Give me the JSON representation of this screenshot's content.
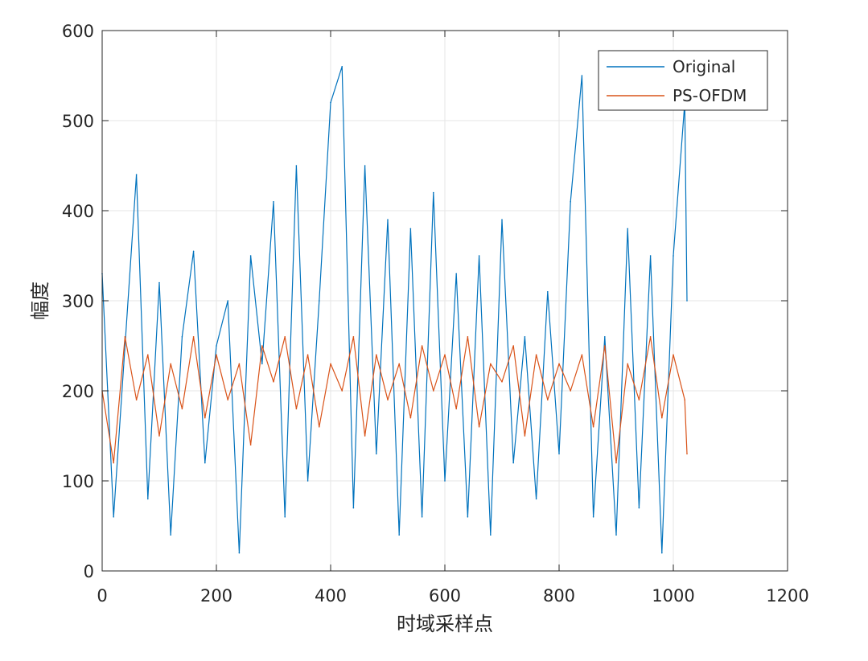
{
  "figure": {
    "background": "#ffffff"
  },
  "chart_data": {
    "type": "line",
    "title": "",
    "xlabel": "时域采样点",
    "ylabel": "幅度",
    "xlim": [
      0,
      1200
    ],
    "ylim": [
      0,
      600
    ],
    "xticks": [
      0,
      200,
      400,
      600,
      800,
      1000,
      1200
    ],
    "yticks": [
      0,
      100,
      200,
      300,
      400,
      500,
      600
    ],
    "xtick_labels": [
      "0",
      "200",
      "400",
      "600",
      "800",
      "1000",
      "1200"
    ],
    "ytick_labels": [
      "0",
      "100",
      "200",
      "300",
      "400",
      "500",
      "600"
    ],
    "grid": true,
    "legend_position": "top-right",
    "x": [
      0,
      20,
      40,
      60,
      80,
      100,
      120,
      140,
      160,
      180,
      200,
      220,
      240,
      260,
      280,
      300,
      320,
      340,
      360,
      380,
      400,
      420,
      440,
      460,
      480,
      500,
      520,
      540,
      560,
      580,
      600,
      620,
      640,
      660,
      680,
      700,
      720,
      740,
      760,
      780,
      800,
      820,
      840,
      860,
      880,
      900,
      920,
      940,
      960,
      980,
      1000,
      1020,
      1024
    ],
    "series": [
      {
        "name": "Original",
        "color": "#0072BD",
        "values": [
          330,
          60,
          250,
          440,
          80,
          320,
          40,
          260,
          355,
          120,
          250,
          300,
          20,
          350,
          230,
          410,
          60,
          450,
          100,
          300,
          520,
          560,
          70,
          450,
          130,
          390,
          40,
          380,
          60,
          420,
          100,
          330,
          60,
          350,
          40,
          390,
          120,
          260,
          80,
          310,
          130,
          410,
          550,
          60,
          260,
          40,
          380,
          70,
          350,
          20,
          350,
          520,
          300
        ]
      },
      {
        "name": "PS-OFDM",
        "color": "#D95319",
        "values": [
          200,
          120,
          260,
          190,
          240,
          150,
          230,
          180,
          260,
          170,
          240,
          190,
          230,
          140,
          250,
          210,
          260,
          180,
          240,
          160,
          230,
          200,
          260,
          150,
          240,
          190,
          230,
          170,
          250,
          200,
          240,
          180,
          260,
          160,
          230,
          210,
          250,
          150,
          240,
          190,
          230,
          200,
          240,
          160,
          250,
          120,
          230,
          190,
          260,
          170,
          240,
          190,
          130
        ]
      }
    ]
  }
}
